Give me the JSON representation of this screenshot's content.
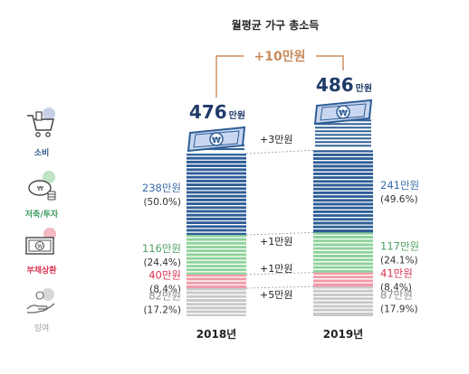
{
  "title": "월평균 가구 총소득",
  "diff_label": "+10만원",
  "legend": [
    {
      "label": "소비",
      "color": "#2a5a8c",
      "icon": "shopping-cart-icon"
    },
    {
      "label": "저축/투자",
      "color": "#3a9a5a",
      "icon": "piggy-bank-icon"
    },
    {
      "label": "부채상환",
      "color": "#d9334f",
      "icon": "banknote-icon"
    },
    {
      "label": "잉여",
      "color": "#999999",
      "icon": "hand-coins-icon"
    }
  ],
  "colors": {
    "consumption": "#2e5e96",
    "saving": "#8ed39a",
    "debt": "#f19aa8",
    "surplus": "#c8c8c8",
    "navy_text": "#1f3a68",
    "blue_text": "#3a6aa8",
    "green_text": "#4fa060",
    "red_text": "#d9334f",
    "gray_text": "#8a8a8a",
    "orange": "#c98a5a"
  },
  "chart_data": {
    "type": "bar",
    "stacked": true,
    "title": "월평균 가구 총소득",
    "categories": [
      "2018년",
      "2019년"
    ],
    "totals": [
      476,
      486
    ],
    "total_labels": [
      {
        "num": "476",
        "unit": "만원"
      },
      {
        "num": "486",
        "unit": "만원"
      }
    ],
    "series": [
      {
        "name": "소비",
        "values": [
          238,
          241
        ],
        "labels": [
          "238만원",
          "241만원"
        ],
        "pct": [
          "(50.0%)",
          "(49.6%)"
        ],
        "change": "+3만원"
      },
      {
        "name": "저축/투자",
        "values": [
          116,
          117
        ],
        "labels": [
          "116만원",
          "117만원"
        ],
        "pct": [
          "(24.4%)",
          "(24.1%)"
        ],
        "change": "+1만원"
      },
      {
        "name": "부채상환",
        "values": [
          40,
          41
        ],
        "labels": [
          "40만원",
          "41만원"
        ],
        "pct": [
          "(8.4%)",
          "(8.4%)"
        ],
        "change": "+1만원"
      },
      {
        "name": "잉여",
        "values": [
          82,
          87
        ],
        "labels": [
          "82만원",
          "87만원"
        ],
        "pct": [
          "(17.2%)",
          "(17.9%)"
        ],
        "change": "+5만원"
      }
    ]
  }
}
